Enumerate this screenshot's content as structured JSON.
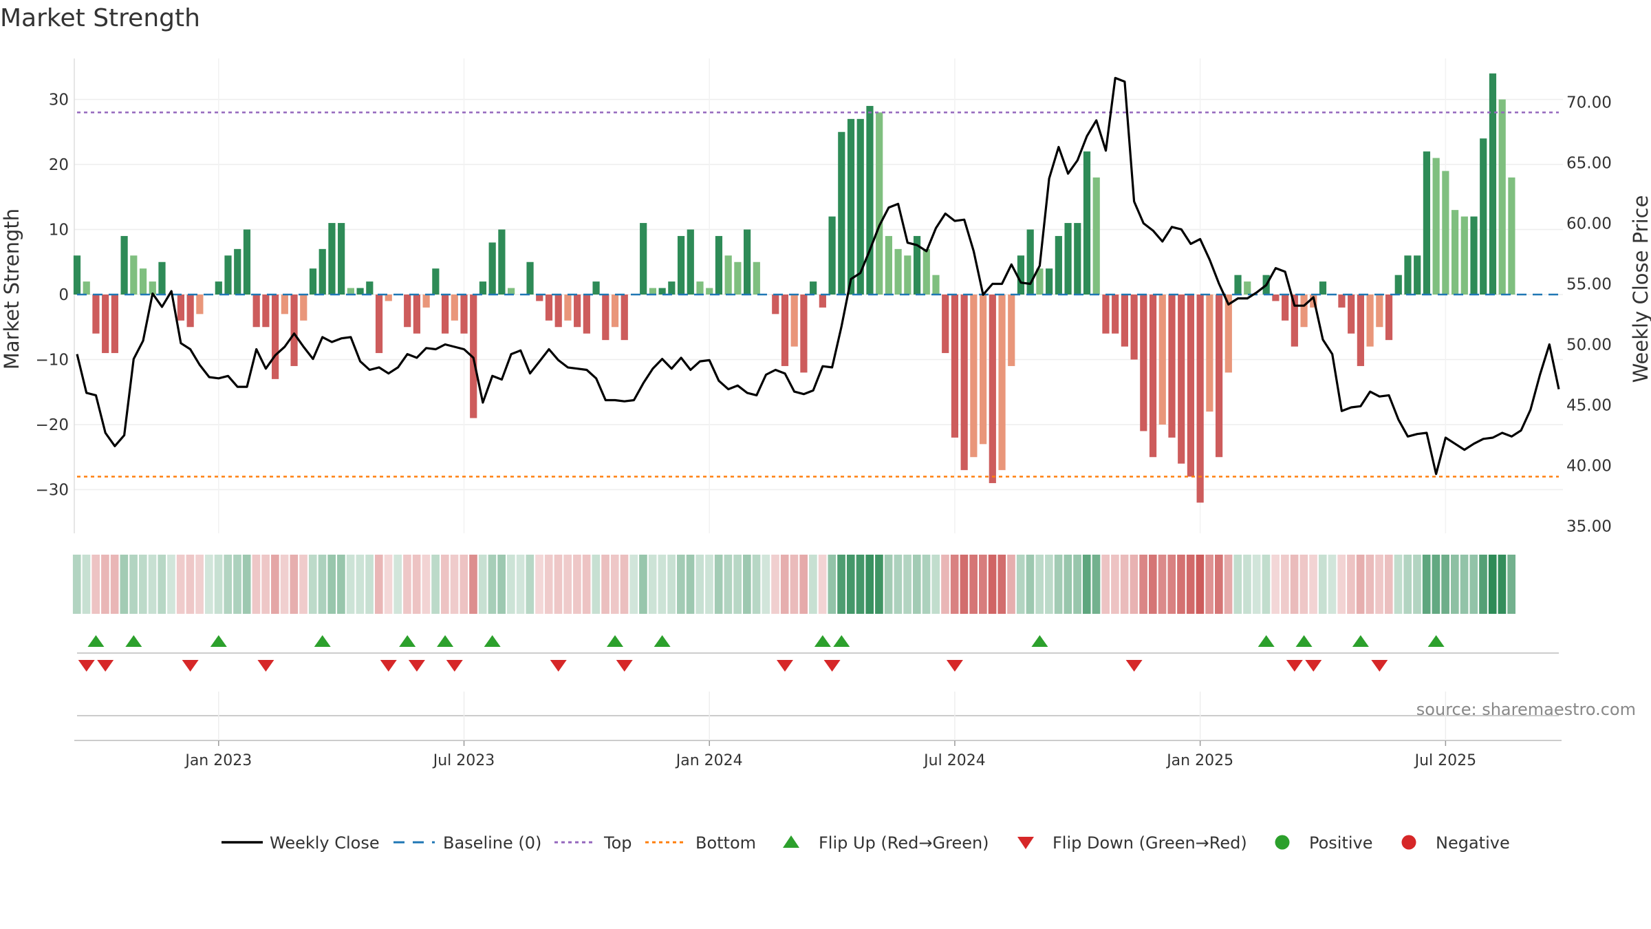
{
  "chart_data": {
    "type": "bar+line",
    "title": "Market Strength",
    "ylabel_left": "Market Strength",
    "ylabel_right": "Weekly Close Price",
    "source_text": "source: sharemaestro.com",
    "ylim_left": [
      -36.5,
      36.5
    ],
    "ylim_right": [
      34.5,
      73.5
    ],
    "yticks_left": [
      30,
      20,
      10,
      0,
      -10,
      -20,
      -30
    ],
    "ytick_labels_left": [
      "30",
      "20",
      "10",
      "0",
      "−10",
      "−20",
      "−30"
    ],
    "yticks_right": [
      70,
      65,
      60,
      55,
      50,
      45,
      40,
      35
    ],
    "ytick_labels_right": [
      "70.00",
      "65.00",
      "60.00",
      "55.00",
      "50.00",
      "45.00",
      "40.00",
      "35.00"
    ],
    "top_level": 28,
    "bottom_level": -28,
    "x_range": [
      0,
      157
    ],
    "x_ticks": [
      15,
      41,
      67,
      93,
      119,
      145
    ],
    "x_tick_labels": [
      "Jan 2023",
      "Jul 2023",
      "Jan 2024",
      "Jul 2024",
      "Jan 2025",
      "Jul 2025"
    ],
    "strength": [
      6,
      2,
      -6,
      -9,
      -9,
      9,
      6,
      4,
      2,
      5,
      0,
      -4,
      -5,
      -3,
      0,
      2,
      6,
      7,
      10,
      -5,
      -5,
      -13,
      -3,
      -11,
      -4,
      4,
      7,
      11,
      11,
      1,
      1,
      2,
      -9,
      -1,
      0,
      -5,
      -6,
      -2,
      4,
      -6,
      -4,
      -6,
      -19,
      2,
      8,
      10,
      1,
      0,
      5,
      -1,
      -4,
      -5,
      -4,
      -5,
      -6,
      2,
      -7,
      -5,
      -7,
      0,
      11,
      1,
      1,
      2,
      9,
      10,
      2,
      1,
      9,
      6,
      5,
      10,
      5,
      0,
      -3,
      -11,
      -8,
      -12,
      2,
      -2,
      12,
      25,
      27,
      27,
      29,
      28,
      9,
      7,
      6,
      9,
      7,
      3,
      -9,
      -22,
      -27,
      -25,
      -23,
      -29,
      -27,
      -11,
      6,
      10,
      4,
      4,
      9,
      11,
      11,
      22,
      18,
      -6,
      -6,
      -8,
      -10,
      -21,
      -25,
      -20,
      -22,
      -26,
      -28,
      -32,
      -18,
      -25,
      -12,
      3,
      2,
      0,
      3,
      -1,
      -4,
      -8,
      -5,
      -2,
      2,
      0,
      -2,
      -6,
      -11,
      -8,
      -5,
      -7,
      3,
      6,
      6,
      22,
      21,
      19,
      13,
      12,
      12,
      24,
      34,
      30,
      18
    ],
    "close": [
      49.2,
      46,
      45.8,
      42.7,
      41.6,
      42.5,
      48.8,
      50.3,
      54.2,
      53.1,
      54.4,
      50.1,
      49.6,
      48.3,
      47.3,
      47.2,
      47.4,
      46.5,
      46.5,
      49.6,
      48,
      49.1,
      49.8,
      50.9,
      49.8,
      48.8,
      50.6,
      50.2,
      50.5,
      50.6,
      48.6,
      47.9,
      48.1,
      47.6,
      48.1,
      49.2,
      48.9,
      49.7,
      49.6,
      50,
      49.8,
      49.6,
      48.9,
      45.2,
      47.4,
      47.1,
      49.2,
      49.5,
      47.6,
      48.6,
      49.6,
      48.7,
      48.1,
      48,
      47.9,
      47.2,
      45.4,
      45.4,
      45.3,
      45.4,
      46.8,
      48,
      48.8,
      48,
      48.9,
      47.9,
      48.6,
      48.7,
      47,
      46.3,
      46.6,
      46,
      45.8,
      47.5,
      47.9,
      47.6,
      46.1,
      45.9,
      46.2,
      48.2,
      48.1,
      51.5,
      55.4,
      55.9,
      57.8,
      59.8,
      61.3,
      61.6,
      58.4,
      58.2,
      57.7,
      59.6,
      60.8,
      60.2,
      60.3,
      57.7,
      54.1,
      55,
      55,
      56.6,
      55.1,
      55,
      56.5,
      63.7,
      66.3,
      64.1,
      65.2,
      67.2,
      68.5,
      66,
      72,
      71.7,
      61.8,
      60,
      59.4,
      58.5,
      59.7,
      59.5,
      58.3,
      58.7,
      57,
      55,
      53.3,
      53.8,
      53.8,
      54.3,
      54.9,
      56.3,
      56,
      53.2,
      53.2,
      53.9,
      50.4,
      49.2,
      44.5,
      44.8,
      44.9,
      46.1,
      45.7,
      45.8,
      43.8,
      42.4,
      42.6,
      42.7,
      39.3,
      42.3,
      41.8,
      41.3,
      41.8,
      42.2,
      42.3,
      42.7,
      42.4,
      42.9,
      44.6,
      47.5,
      50,
      46.3
    ],
    "flip_up_x": [
      2,
      6,
      15,
      26,
      35,
      39,
      44,
      57,
      62,
      79,
      81,
      102,
      126,
      130,
      136,
      144
    ],
    "flip_down_x": [
      1,
      3,
      12,
      20,
      33,
      36,
      40,
      51,
      58,
      75,
      80,
      93,
      112,
      129,
      131,
      138
    ],
    "legend": [
      "Weekly Close",
      "Baseline (0)",
      "Top",
      "Bottom",
      "Flip Up (Red→Green)",
      "Flip Down (Green→Red)",
      "Positive",
      "Negative"
    ],
    "colors": {
      "pos_strong": "#2e8b57",
      "pos_weak": "#7fbf7f",
      "neg_strong": "#cd5c5c",
      "neg_weak": "#e9967a",
      "close_line": "#000000",
      "baseline": "#1f77b4",
      "top": "#9467bd",
      "bottom": "#ff7f0e",
      "flip_up": "#2ca02c",
      "flip_down": "#d62728",
      "positive": "#2ca02c",
      "negative": "#d62728"
    }
  }
}
